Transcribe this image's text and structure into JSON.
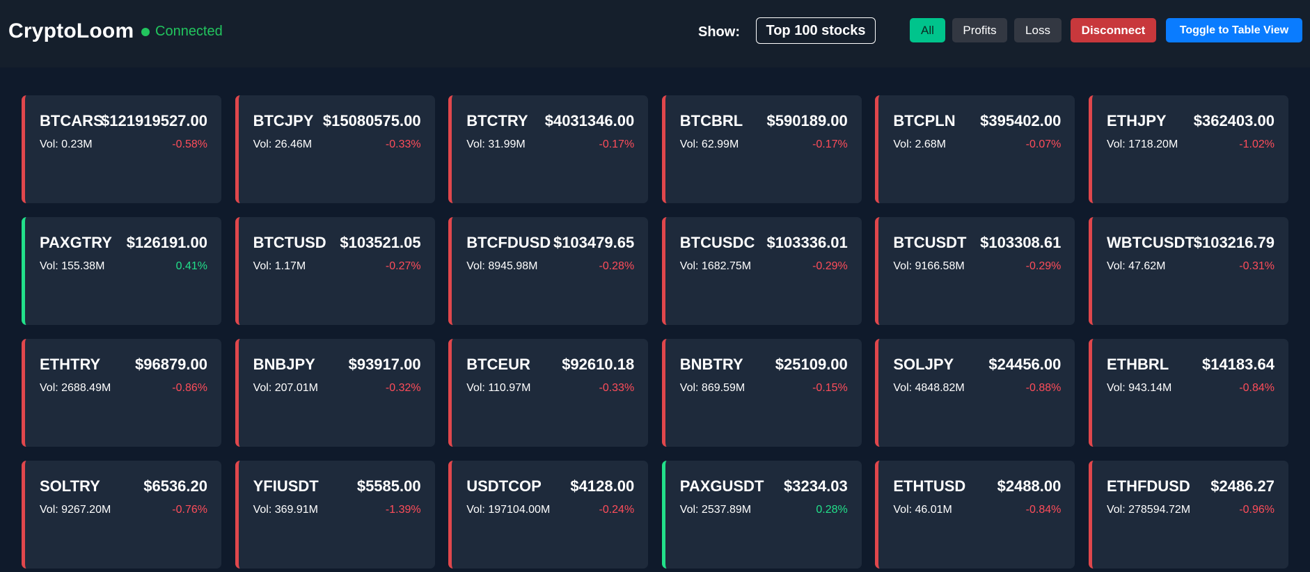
{
  "header": {
    "logo": "CryptoLoom",
    "status": "Connected",
    "show_label": "Show:",
    "selected_filter": "Top 100 stocks",
    "buttons": {
      "all": "All",
      "profits": "Profits",
      "loss": "Loss",
      "disconnect": "Disconnect",
      "toggle": "Toggle to Table View"
    }
  },
  "colors": {
    "up": "#22e08a",
    "down": "#ff4d5a",
    "accent_green": "#00c48c",
    "accent_blue": "#0a7cff",
    "danger": "#c8383c"
  },
  "cards": [
    {
      "symbol": "BTCARS",
      "price": "$121919527.00",
      "volume": "Vol: 0.23M",
      "change": "-0.58%",
      "trend": "down"
    },
    {
      "symbol": "BTCJPY",
      "price": "$15080575.00",
      "volume": "Vol: 26.46M",
      "change": "-0.33%",
      "trend": "down"
    },
    {
      "symbol": "BTCTRY",
      "price": "$4031346.00",
      "volume": "Vol: 31.99M",
      "change": "-0.17%",
      "trend": "down"
    },
    {
      "symbol": "BTCBRL",
      "price": "$590189.00",
      "volume": "Vol: 62.99M",
      "change": "-0.17%",
      "trend": "down"
    },
    {
      "symbol": "BTCPLN",
      "price": "$395402.00",
      "volume": "Vol: 2.68M",
      "change": "-0.07%",
      "trend": "down"
    },
    {
      "symbol": "ETHJPY",
      "price": "$362403.00",
      "volume": "Vol: 1718.20M",
      "change": "-1.02%",
      "trend": "down"
    },
    {
      "symbol": "PAXGTRY",
      "price": "$126191.00",
      "volume": "Vol: 155.38M",
      "change": "0.41%",
      "trend": "up"
    },
    {
      "symbol": "BTCTUSD",
      "price": "$103521.05",
      "volume": "Vol: 1.17M",
      "change": "-0.27%",
      "trend": "down"
    },
    {
      "symbol": "BTCFDUSD",
      "price": "$103479.65",
      "volume": "Vol: 8945.98M",
      "change": "-0.28%",
      "trend": "down"
    },
    {
      "symbol": "BTCUSDC",
      "price": "$103336.01",
      "volume": "Vol: 1682.75M",
      "change": "-0.29%",
      "trend": "down"
    },
    {
      "symbol": "BTCUSDT",
      "price": "$103308.61",
      "volume": "Vol: 9166.58M",
      "change": "-0.29%",
      "trend": "down"
    },
    {
      "symbol": "WBTCUSDT",
      "price": "$103216.79",
      "volume": "Vol: 47.62M",
      "change": "-0.31%",
      "trend": "down"
    },
    {
      "symbol": "ETHTRY",
      "price": "$96879.00",
      "volume": "Vol: 2688.49M",
      "change": "-0.86%",
      "trend": "down"
    },
    {
      "symbol": "BNBJPY",
      "price": "$93917.00",
      "volume": "Vol: 207.01M",
      "change": "-0.32%",
      "trend": "down"
    },
    {
      "symbol": "BTCEUR",
      "price": "$92610.18",
      "volume": "Vol: 110.97M",
      "change": "-0.33%",
      "trend": "down"
    },
    {
      "symbol": "BNBTRY",
      "price": "$25109.00",
      "volume": "Vol: 869.59M",
      "change": "-0.15%",
      "trend": "down"
    },
    {
      "symbol": "SOLJPY",
      "price": "$24456.00",
      "volume": "Vol: 4848.82M",
      "change": "-0.88%",
      "trend": "down"
    },
    {
      "symbol": "ETHBRL",
      "price": "$14183.64",
      "volume": "Vol: 943.14M",
      "change": "-0.84%",
      "trend": "down"
    },
    {
      "symbol": "SOLTRY",
      "price": "$6536.20",
      "volume": "Vol: 9267.20M",
      "change": "-0.76%",
      "trend": "down"
    },
    {
      "symbol": "YFIUSDT",
      "price": "$5585.00",
      "volume": "Vol: 369.91M",
      "change": "-1.39%",
      "trend": "down"
    },
    {
      "symbol": "USDTCOP",
      "price": "$4128.00",
      "volume": "Vol: 197104.00M",
      "change": "-0.24%",
      "trend": "down"
    },
    {
      "symbol": "PAXGUSDT",
      "price": "$3234.03",
      "volume": "Vol: 2537.89M",
      "change": "0.28%",
      "trend": "up"
    },
    {
      "symbol": "ETHTUSD",
      "price": "$2488.00",
      "volume": "Vol: 46.01M",
      "change": "-0.84%",
      "trend": "down"
    },
    {
      "symbol": "ETHFDUSD",
      "price": "$2486.27",
      "volume": "Vol: 278594.72M",
      "change": "-0.96%",
      "trend": "down"
    }
  ]
}
